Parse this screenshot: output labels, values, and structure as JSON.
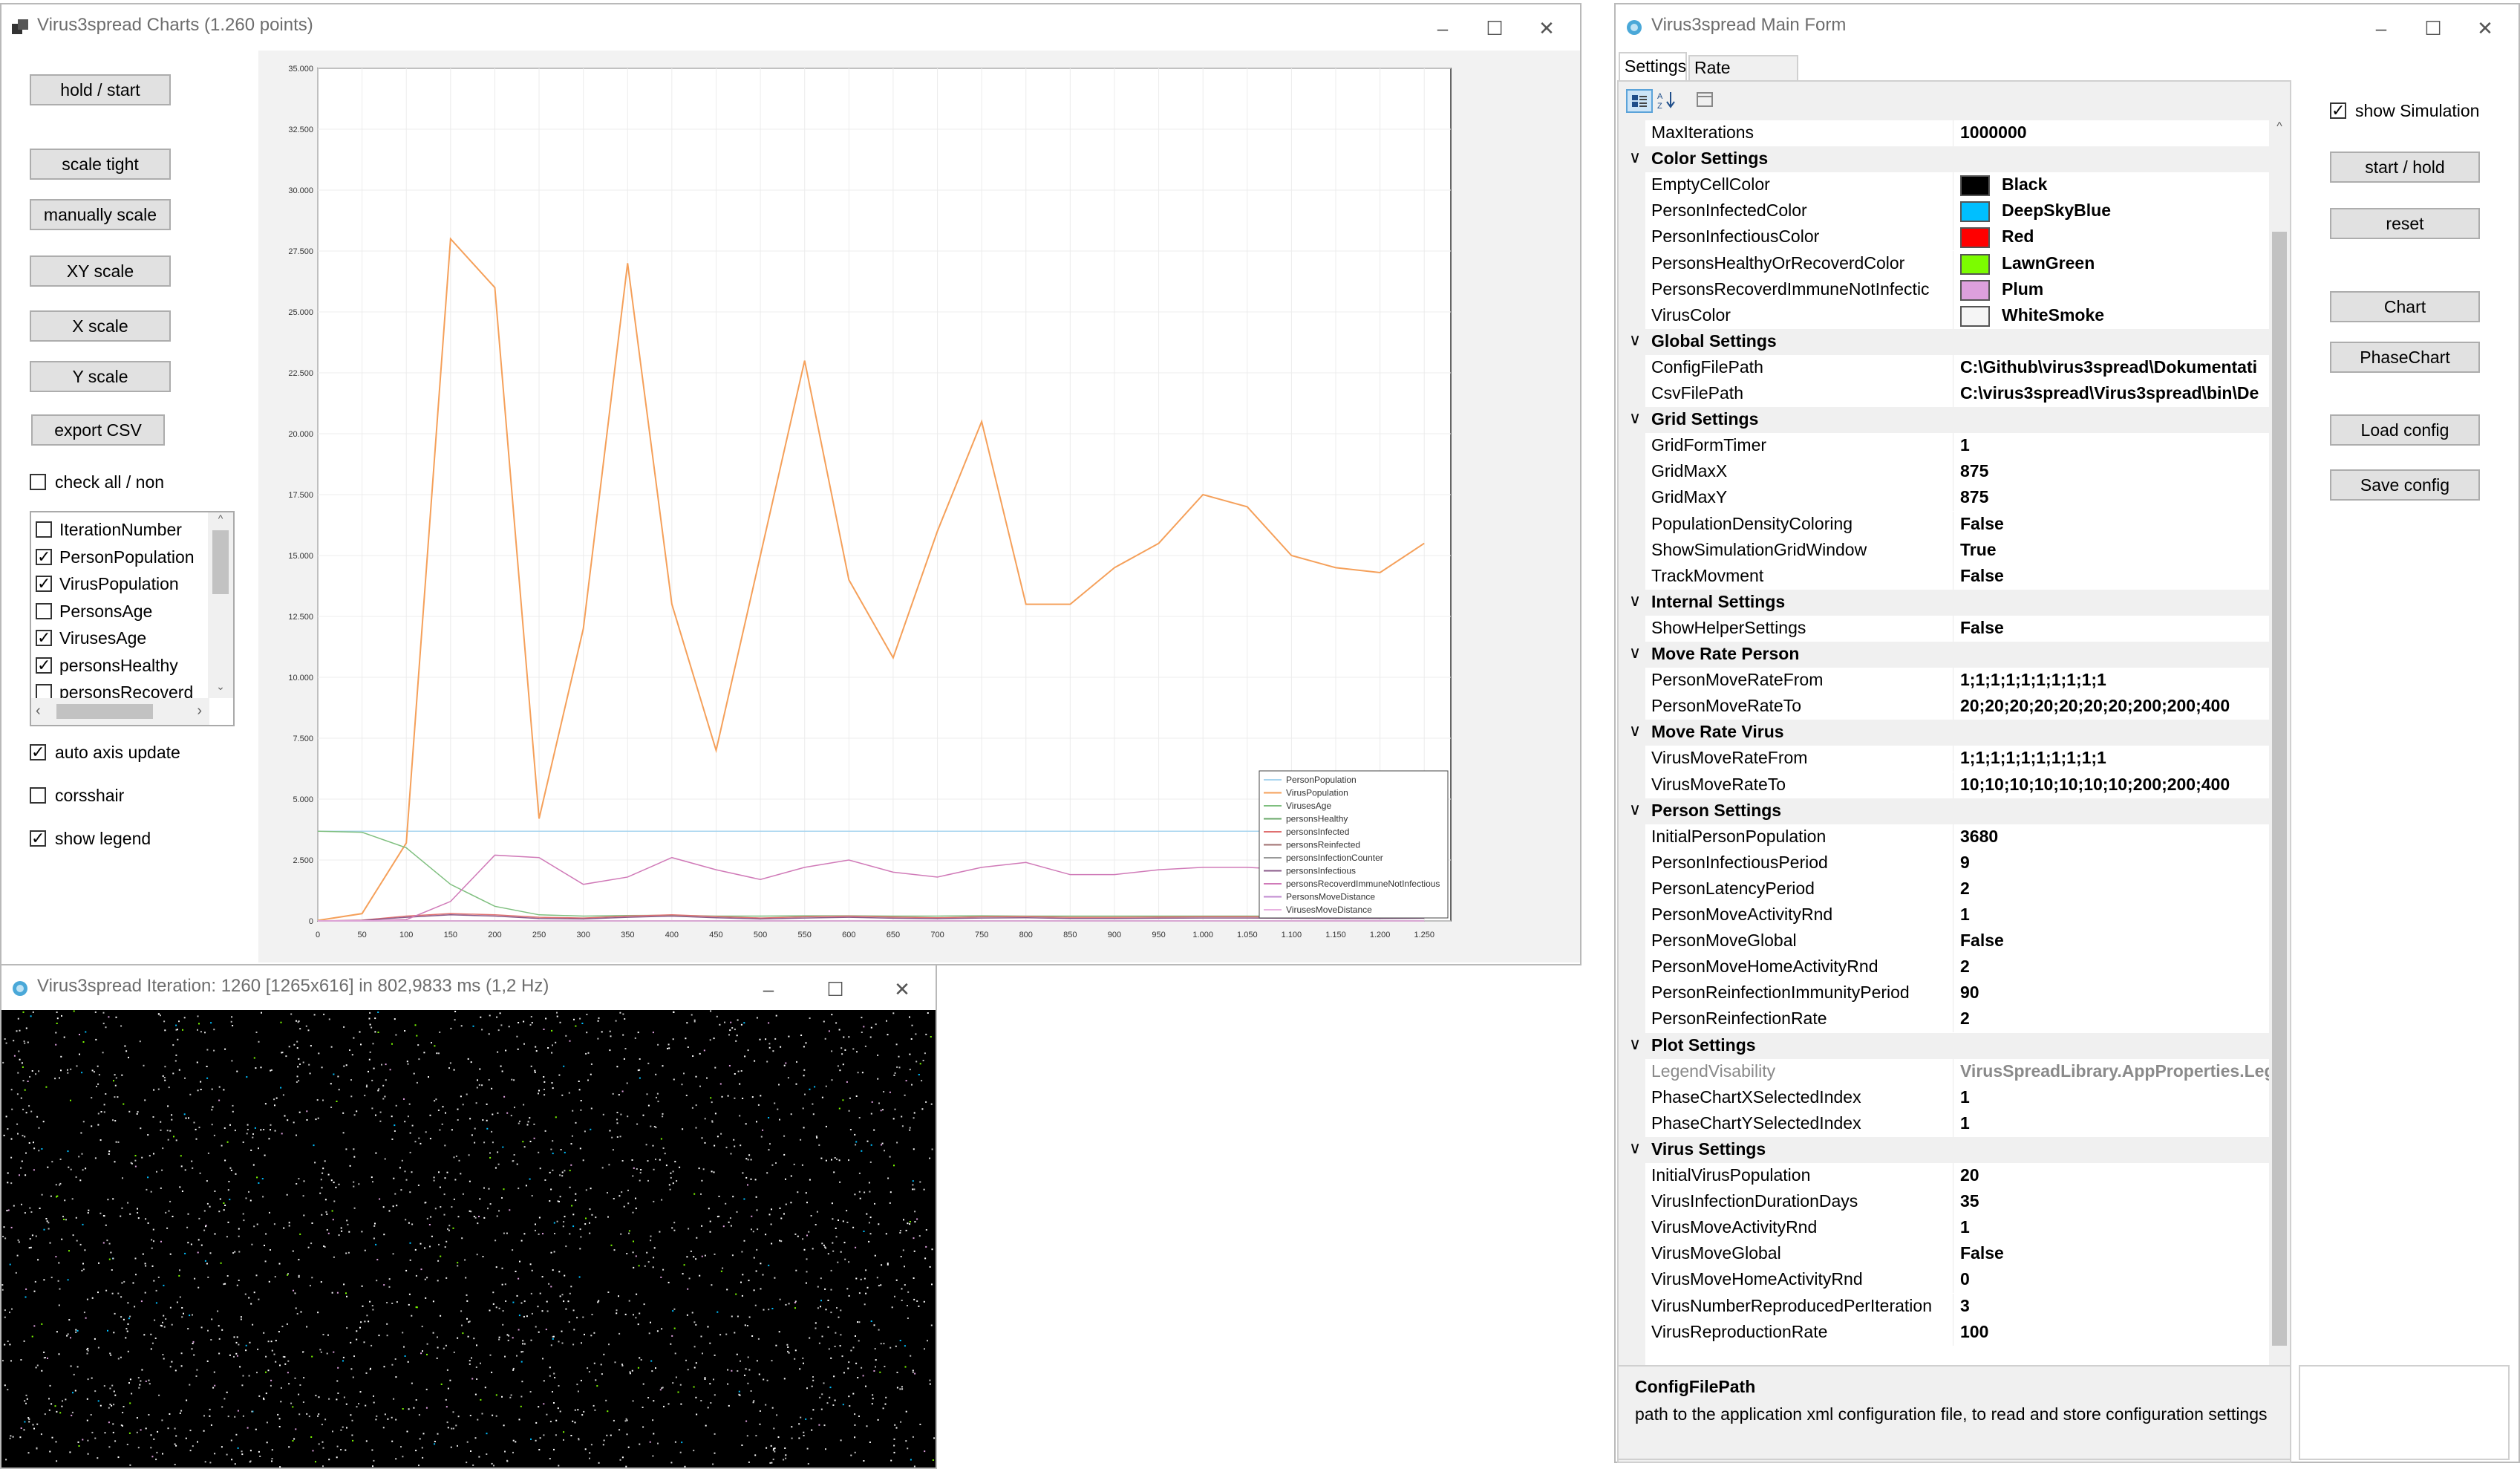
{
  "chart_window": {
    "title": "Virus3spread Charts (1.260 points)",
    "buttons": {
      "hold_start": "hold / start",
      "scale_tight": "scale tight",
      "manually_scale": "manually scale",
      "xy_scale": "XY scale",
      "x_scale": "X scale",
      "y_scale": "Y scale",
      "export_csv": "export CSV"
    },
    "check_all_label": "check all / non",
    "series_list": [
      {
        "label": "IterationNumber",
        "checked": false
      },
      {
        "label": "PersonPopulation",
        "checked": true
      },
      {
        "label": "VirusPopulation",
        "checked": true
      },
      {
        "label": "PersonsAge",
        "checked": false
      },
      {
        "label": "VirusesAge",
        "checked": true
      },
      {
        "label": "personsHealthy",
        "checked": true
      },
      {
        "label": "personsRecoverd",
        "checked": false
      }
    ],
    "auto_axis_label": "auto axis update",
    "corsshair_label": "corsshair",
    "show_legend_label": "show legend",
    "auto_axis_checked": true,
    "corsshair_checked": false,
    "show_legend_checked": true
  },
  "chart_data": {
    "type": "line",
    "x": [
      0,
      50,
      100,
      150,
      200,
      250,
      300,
      350,
      400,
      450,
      500,
      550,
      600,
      650,
      700,
      750,
      800,
      850,
      900,
      950,
      1000,
      1050,
      1100,
      1150,
      1200,
      1250
    ],
    "xlim": [
      0,
      1280
    ],
    "ylim": [
      0,
      35000
    ],
    "xticks": [
      "0",
      "50",
      "100",
      "150",
      "200",
      "250",
      "300",
      "350",
      "400",
      "450",
      "500",
      "550",
      "600",
      "650",
      "700",
      "750",
      "800",
      "850",
      "900",
      "950",
      "1.000",
      "1.050",
      "1.100",
      "1.150",
      "1.200",
      "1.250"
    ],
    "yticks": [
      "0",
      "2.500",
      "5.000",
      "7.500",
      "10.000",
      "12.500",
      "15.000",
      "17.500",
      "20.000",
      "22.500",
      "25.000",
      "27.500",
      "30.000",
      "32.500",
      "35.000"
    ],
    "series": [
      {
        "name": "PersonPopulation",
        "color": "#a8d5ef",
        "values": [
          3680,
          3680,
          3680,
          3680,
          3680,
          3680,
          3680,
          3680,
          3680,
          3680,
          3680,
          3680,
          3680,
          3680,
          3680,
          3680,
          3680,
          3680,
          3680,
          3680,
          3680,
          3680,
          3680,
          3680,
          3680,
          3680
        ]
      },
      {
        "name": "VirusPopulation",
        "color": "#f5a05a",
        "values": [
          20,
          300,
          3200,
          28000,
          26000,
          4200,
          12000,
          27000,
          13000,
          7000,
          15000,
          23000,
          14000,
          10800,
          16000,
          20500,
          13000,
          13000,
          14500,
          15500,
          17500,
          17000,
          15000,
          14500,
          14300,
          15500
        ]
      },
      {
        "name": "VirusesAge",
        "color": "#7fbf7f",
        "values": [
          3680,
          3640,
          3000,
          1500,
          600,
          250,
          200,
          220,
          230,
          200,
          200,
          210,
          210,
          200,
          200,
          210,
          200,
          200,
          200,
          200,
          200,
          200,
          200,
          200,
          200,
          200
        ]
      },
      {
        "name": "personsHealthy",
        "color": "#6aa86a",
        "values": [
          0,
          0,
          0,
          0,
          0,
          0,
          0,
          0,
          0,
          0,
          0,
          0,
          0,
          0,
          0,
          0,
          0,
          0,
          0,
          0,
          0,
          0,
          0,
          0,
          0,
          0
        ]
      },
      {
        "name": "personsInfected",
        "color": "#e07070",
        "values": [
          0,
          30,
          200,
          300,
          250,
          150,
          120,
          200,
          250,
          180,
          120,
          170,
          200,
          160,
          130,
          170,
          180,
          150,
          150,
          160,
          170,
          170,
          160,
          150,
          150,
          160
        ]
      },
      {
        "name": "personsReinfected",
        "color": "#a07070",
        "values": [
          0,
          0,
          0,
          0,
          0,
          0,
          0,
          0,
          0,
          0,
          0,
          0,
          0,
          0,
          0,
          0,
          0,
          0,
          0,
          0,
          0,
          0,
          0,
          0,
          0,
          0
        ]
      },
      {
        "name": "personsInfectionCounter",
        "color": "#999999",
        "values": [
          0,
          0,
          0,
          0,
          0,
          0,
          0,
          0,
          0,
          0,
          0,
          0,
          0,
          0,
          0,
          0,
          0,
          0,
          0,
          0,
          0,
          0,
          0,
          0,
          0,
          0
        ]
      },
      {
        "name": "personsInfectious",
        "color": "#8a5a8a",
        "values": [
          0,
          20,
          150,
          250,
          200,
          100,
          80,
          150,
          200,
          130,
          80,
          120,
          150,
          110,
          90,
          120,
          130,
          100,
          100,
          110,
          120,
          120,
          110,
          100,
          100,
          110
        ]
      },
      {
        "name": "personsRecoverdImmuneNotInfectious",
        "color": "#d07ab8",
        "values": [
          0,
          0,
          50,
          800,
          2700,
          2600,
          1500,
          1800,
          2600,
          2100,
          1700,
          2200,
          2500,
          2000,
          1800,
          2200,
          2400,
          1900,
          1900,
          2100,
          2200,
          2200,
          2100,
          2000,
          2100,
          2300
        ]
      },
      {
        "name": "PersonsMoveDistance",
        "color": "#c08ad0",
        "values": [
          0,
          0,
          0,
          0,
          0,
          0,
          0,
          0,
          0,
          0,
          0,
          0,
          0,
          0,
          0,
          0,
          0,
          0,
          0,
          0,
          0,
          0,
          0,
          0,
          0,
          0
        ]
      },
      {
        "name": "VirusesMoveDistance",
        "color": "#e8b0e0",
        "values": [
          0,
          0,
          0,
          0,
          0,
          0,
          0,
          0,
          0,
          0,
          0,
          0,
          0,
          0,
          0,
          0,
          0,
          0,
          0,
          0,
          0,
          0,
          0,
          0,
          0,
          0
        ]
      }
    ],
    "legend_position": "bottom-right",
    "grid": true
  },
  "sim_window": {
    "title": "Virus3spread Iteration: 1260 [1265x616] in 802,9833 ms (1,2 Hz)"
  },
  "main_window": {
    "title": "Virus3spread Main Form",
    "tabs": [
      "Settings",
      "Rate Settings"
    ],
    "show_simulation_label": "show Simulation",
    "show_simulation_checked": true,
    "buttons": {
      "start_hold": "start / hold",
      "reset": "reset",
      "chart": "Chart",
      "phasechart": "PhaseChart",
      "load_config": "Load config",
      "save_config": "Save config"
    },
    "grid_rows": [
      {
        "type": "prop",
        "name": "MaxIterations",
        "value": "1000000"
      },
      {
        "type": "cat",
        "name": "Color Settings"
      },
      {
        "type": "prop",
        "name": "EmptyCellColor",
        "value": "Black",
        "swatch": "#000000"
      },
      {
        "type": "prop",
        "name": "PersonInfectedColor",
        "value": "DeepSkyBlue",
        "swatch": "#00bfff"
      },
      {
        "type": "prop",
        "name": "PersonInfectiousColor",
        "value": "Red",
        "swatch": "#ff0000"
      },
      {
        "type": "prop",
        "name": "PersonsHealthyOrRecoverdColor",
        "value": "LawnGreen",
        "swatch": "#7cfc00"
      },
      {
        "type": "prop",
        "name": "PersonsRecoverdImmuneNotInfectic",
        "value": "Plum",
        "swatch": "#dda0dd"
      },
      {
        "type": "prop",
        "name": "VirusColor",
        "value": "WhiteSmoke",
        "swatch": "#f5f5f5"
      },
      {
        "type": "cat",
        "name": "Global Settings"
      },
      {
        "type": "prop",
        "name": "ConfigFilePath",
        "value": "C:\\Github\\virus3spread\\Dokumentati"
      },
      {
        "type": "prop",
        "name": "CsvFilePath",
        "value": "C:\\virus3spread\\Virus3spread\\bin\\De"
      },
      {
        "type": "cat",
        "name": "Grid Settings"
      },
      {
        "type": "prop",
        "name": "GridFormTimer",
        "value": "1"
      },
      {
        "type": "prop",
        "name": "GridMaxX",
        "value": "875"
      },
      {
        "type": "prop",
        "name": "GridMaxY",
        "value": "875"
      },
      {
        "type": "prop",
        "name": "PopulationDensityColoring",
        "value": "False"
      },
      {
        "type": "prop",
        "name": "ShowSimulationGridWindow",
        "value": "True"
      },
      {
        "type": "prop",
        "name": "TrackMovment",
        "value": "False"
      },
      {
        "type": "cat",
        "name": "Internal Settings"
      },
      {
        "type": "prop",
        "name": "ShowHelperSettings",
        "value": "False"
      },
      {
        "type": "cat",
        "name": "Move Rate Person"
      },
      {
        "type": "prop",
        "name": "PersonMoveRateFrom",
        "value": "1;1;1;1;1;1;1;1;1;1"
      },
      {
        "type": "prop",
        "name": "PersonMoveRateTo",
        "value": "20;20;20;20;20;20;20;200;200;400"
      },
      {
        "type": "cat",
        "name": "Move Rate Virus"
      },
      {
        "type": "prop",
        "name": "VirusMoveRateFrom",
        "value": "1;1;1;1;1;1;1;1;1;1"
      },
      {
        "type": "prop",
        "name": "VirusMoveRateTo",
        "value": "10;10;10;10;10;10;10;200;200;400"
      },
      {
        "type": "cat",
        "name": "Person Settings"
      },
      {
        "type": "prop",
        "name": "InitialPersonPopulation",
        "value": "3680"
      },
      {
        "type": "prop",
        "name": "PersonInfectiousPeriod",
        "value": "9"
      },
      {
        "type": "prop",
        "name": "PersonLatencyPeriod",
        "value": "2"
      },
      {
        "type": "prop",
        "name": "PersonMoveActivityRnd",
        "value": "1"
      },
      {
        "type": "prop",
        "name": "PersonMoveGlobal",
        "value": "False"
      },
      {
        "type": "prop",
        "name": "PersonMoveHomeActivityRnd",
        "value": "2"
      },
      {
        "type": "prop",
        "name": "PersonReinfectionImmunityPeriod",
        "value": "90"
      },
      {
        "type": "prop",
        "name": "PersonReinfectionRate",
        "value": "2"
      },
      {
        "type": "cat",
        "name": "Plot Settings"
      },
      {
        "type": "prop",
        "name": "LegendVisability",
        "value": "VirusSpreadLibrary.AppProperties.Leg",
        "grey": true
      },
      {
        "type": "prop",
        "name": "PhaseChartXSelectedIndex",
        "value": "1"
      },
      {
        "type": "prop",
        "name": "PhaseChartYSelectedIndex",
        "value": "1"
      },
      {
        "type": "cat",
        "name": "Virus Settings"
      },
      {
        "type": "prop",
        "name": "InitialVirusPopulation",
        "value": "20"
      },
      {
        "type": "prop",
        "name": "VirusInfectionDurationDays",
        "value": "35"
      },
      {
        "type": "prop",
        "name": "VirusMoveActivityRnd",
        "value": "1"
      },
      {
        "type": "prop",
        "name": "VirusMoveGlobal",
        "value": "False"
      },
      {
        "type": "prop",
        "name": "VirusMoveHomeActivityRnd",
        "value": "0"
      },
      {
        "type": "prop",
        "name": "VirusNumberReproducedPerIteration",
        "value": "3"
      },
      {
        "type": "prop",
        "name": "VirusReproductionRate",
        "value": "100"
      }
    ],
    "help_title": "ConfigFilePath",
    "help_text": "path to the application xml configuration file, to read and store configuration settings"
  }
}
